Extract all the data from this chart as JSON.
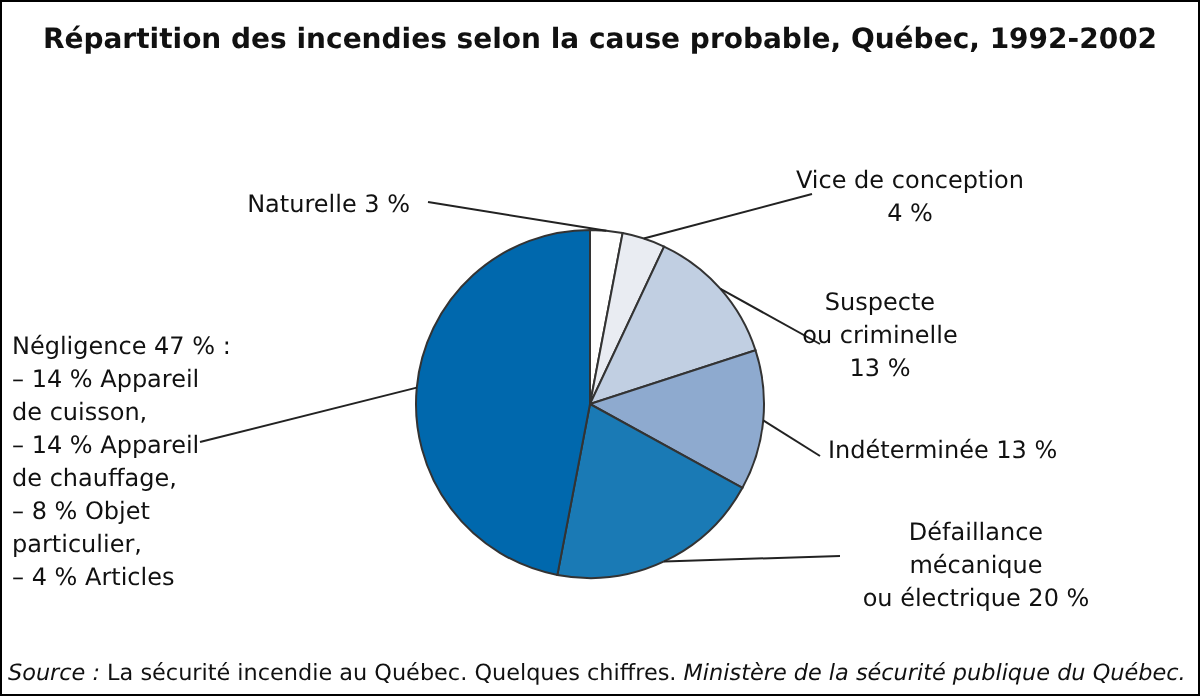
{
  "chart_data": {
    "type": "pie",
    "title": "Répartition des incendies selon la cause probable, Québec, 1992-2002",
    "categories": [
      "Naturelle 3 %",
      "Vice de conception\n4 %",
      "Suspecte\nou criminelle\n13 %",
      "Indéterminée 13 %",
      "Défaillance\nmécanique\nou électrique 20 %",
      "Négligence 47 % :\n– 14 % Appareil\nde cuisson,\n– 14 % Appareil\nde chauffage,\n– 8 % Objet\nparticulier,\n– 4 % Articles"
    ],
    "values": [
      3,
      4,
      13,
      13,
      20,
      47
    ],
    "colors": [
      "#ffffff",
      "#e9ecf2",
      "#c1cfe2",
      "#8eaacf",
      "#1a7ab5",
      "#0068ad"
    ],
    "annotations": [
      "Source :",
      " La sécurité incendie au Québec. Quelques chiffres. ",
      "Ministère de la sécurité publique du Québec."
    ]
  }
}
